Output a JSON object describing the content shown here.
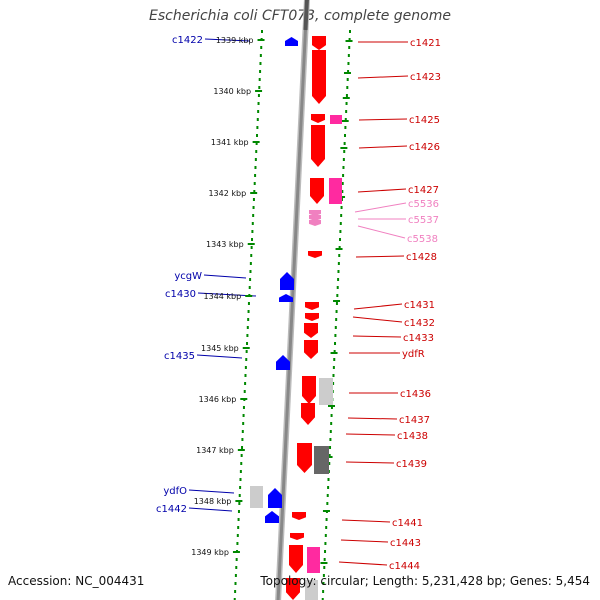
{
  "title": "Escherichia coli CFT073, complete genome",
  "accession_label": "Accession: NC_004431",
  "topology_label": "Topology: circular; Length: 5,231,428 bp; Genes: 5,454",
  "colors": {
    "forward_gene": "#ff0000",
    "reverse_gene": "#0000ff",
    "pseudo_gene": "#ff2aa0",
    "light_gene": "#f080c0",
    "label_right": "#cc0000",
    "label_light": "#f080c0",
    "label_left": "#0000aa",
    "dot_track": "#008800",
    "backbone": "#888888"
  },
  "kbp_ticks": [
    "1339 kbp",
    "1340 kbp",
    "1341 kbp",
    "1342 kbp",
    "1343 kbp",
    "1344 kbp",
    "1345 kbp",
    "1346 kbp",
    "1347 kbp",
    "1348 kbp",
    "1349 kbp"
  ],
  "right_genes": [
    {
      "name": "c1421",
      "kind": "forward"
    },
    {
      "name": "c1423",
      "kind": "forward"
    },
    {
      "name": "c1425",
      "kind": "forward"
    },
    {
      "name": "c1426",
      "kind": "forward"
    },
    {
      "name": "c1427",
      "kind": "forward"
    },
    {
      "name": "c5536",
      "kind": "light"
    },
    {
      "name": "c5537",
      "kind": "light"
    },
    {
      "name": "c5538",
      "kind": "light"
    },
    {
      "name": "c1428",
      "kind": "forward"
    },
    {
      "name": "c1431",
      "kind": "forward"
    },
    {
      "name": "c1432",
      "kind": "forward"
    },
    {
      "name": "c1433",
      "kind": "forward"
    },
    {
      "name": "ydfR",
      "kind": "forward"
    },
    {
      "name": "c1436",
      "kind": "forward"
    },
    {
      "name": "c1437",
      "kind": "forward"
    },
    {
      "name": "c1438",
      "kind": "forward"
    },
    {
      "name": "c1439",
      "kind": "forward"
    },
    {
      "name": "c1441",
      "kind": "forward"
    },
    {
      "name": "c1443",
      "kind": "forward"
    },
    {
      "name": "c1444",
      "kind": "forward"
    }
  ],
  "left_genes": [
    {
      "name": "c1422",
      "kind": "reverse"
    },
    {
      "name": "ycgW",
      "kind": "reverse"
    },
    {
      "name": "c1430",
      "kind": "reverse"
    },
    {
      "name": "c1435",
      "kind": "reverse"
    },
    {
      "name": "ydfO",
      "kind": "reverse"
    },
    {
      "name": "c1442",
      "kind": "reverse"
    }
  ]
}
